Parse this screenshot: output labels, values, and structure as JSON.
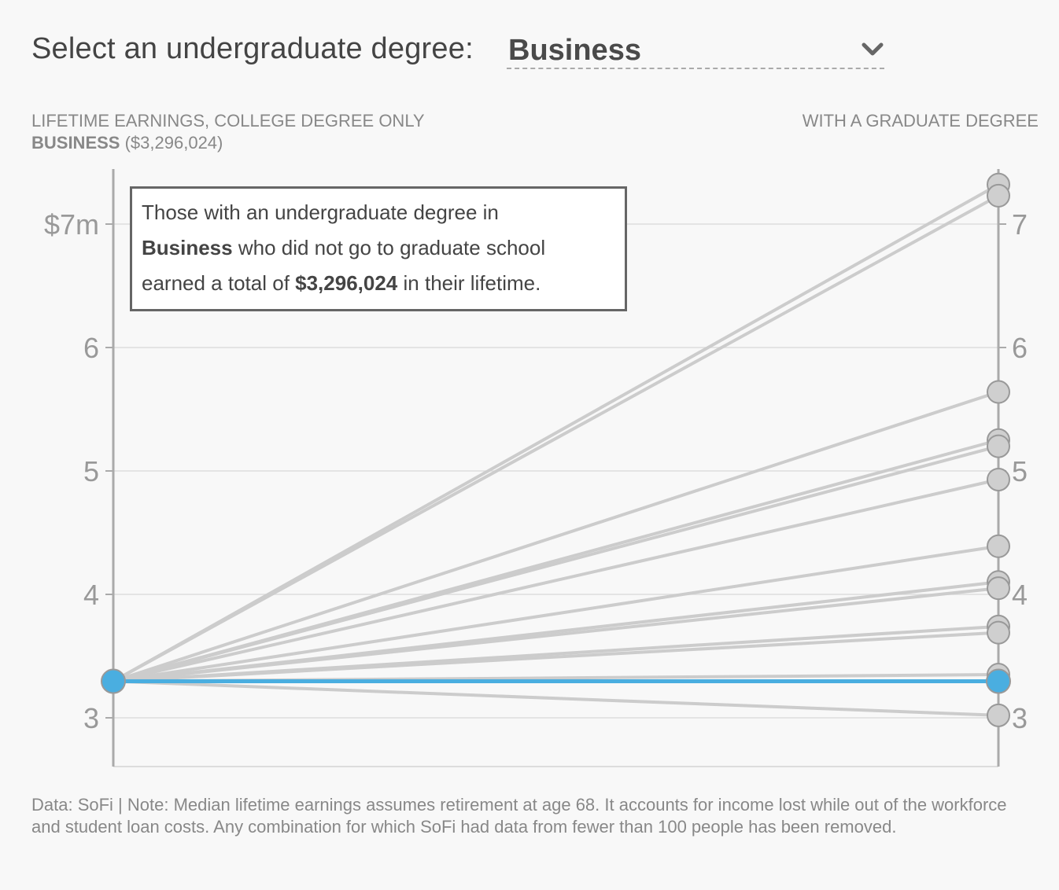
{
  "selector": {
    "prompt": "Select an undergraduate degree:",
    "value": "Business",
    "icon": "chevron-down-icon"
  },
  "headers": {
    "left_title": "LIFETIME EARNINGS, COLLEGE DEGREE ONLY",
    "left_degree": "BUSINESS",
    "left_amount": "($3,296,024)",
    "right_title": "WITH A GRADUATE DEGREE"
  },
  "tooltip": {
    "line1": "Those with an undergraduate degree in",
    "degree": "Business",
    "line2_rest": " who did not go to graduate school",
    "line3_pre": "earned a total of ",
    "amount": "$3,296,024",
    "line3_post": " in their lifetime."
  },
  "footnote": "Data: SoFi | Note: Median lifetime earnings assumes retirement at age 68. It accounts for income lost while out of the workforce and student loan costs. Any combination for which SoFi had data from fewer than 100 people has been removed.",
  "colors": {
    "highlight": "#4aaee0",
    "line": "#cccccc",
    "axis": "#aaaaaa",
    "grid": "#dddddd"
  },
  "chart_data": {
    "type": "line",
    "xlabel": "",
    "ylabel": "",
    "ylim": [
      2.6,
      7.45
    ],
    "left_ticks": [
      "$7m",
      "6",
      "5",
      "4",
      "3"
    ],
    "right_ticks": [
      "7",
      "6",
      "5",
      "4",
      "3"
    ],
    "tick_values": [
      7,
      6,
      5,
      4,
      3
    ],
    "grid": true,
    "start_value": 3.296024,
    "end_values": [
      7.32,
      7.23,
      5.64,
      5.25,
      5.2,
      4.93,
      4.39,
      4.1,
      4.05,
      3.74,
      3.69,
      3.35,
      3.02
    ],
    "highlight_end_value": 3.296024
  }
}
